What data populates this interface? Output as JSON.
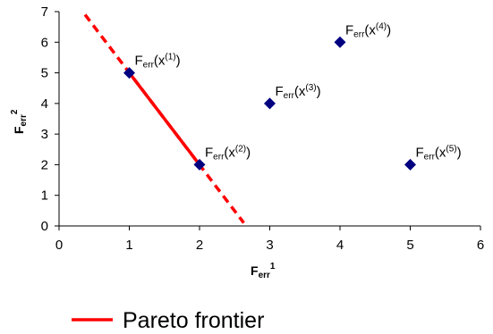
{
  "chart_data": {
    "type": "scatter",
    "xlabel": {
      "base": "F",
      "sub": "err",
      "sup": "1"
    },
    "ylabel": {
      "base": "F",
      "sub": "err",
      "sup": "2"
    },
    "xlim": [
      0,
      6
    ],
    "ylim": [
      0,
      7
    ],
    "xticks": [
      "0",
      "1",
      "2",
      "3",
      "4",
      "5",
      "6"
    ],
    "yticks": [
      "0",
      "1",
      "2",
      "3",
      "4",
      "5",
      "6",
      "7"
    ],
    "grid": false,
    "points": [
      {
        "x": 1,
        "y": 5,
        "label": {
          "base": "F",
          "sub": "err",
          "mid": "(x",
          "sup": "(1)",
          "end": ")"
        }
      },
      {
        "x": 2,
        "y": 2,
        "label": {
          "base": "F",
          "sub": "err",
          "mid": "(x",
          "sup": "(2)",
          "end": ")"
        }
      },
      {
        "x": 3,
        "y": 4,
        "label": {
          "base": "F",
          "sub": "err",
          "mid": "(x",
          "sup": "(3)",
          "end": ")"
        }
      },
      {
        "x": 4,
        "y": 6,
        "label": {
          "base": "F",
          "sub": "err",
          "mid": "(x",
          "sup": "(4)",
          "end": ")"
        }
      },
      {
        "x": 5,
        "y": 2,
        "label": {
          "base": "F",
          "sub": "err",
          "mid": "(x",
          "sup": "(5)",
          "end": ")"
        }
      }
    ],
    "frontier_solid": [
      [
        1,
        5
      ],
      [
        2,
        2
      ]
    ],
    "frontier_dashed": [
      [
        0.37,
        6.9
      ],
      [
        2.63,
        0.1
      ]
    ],
    "marker_color": "#000080",
    "frontier_color": "#ff0000",
    "legend": {
      "label": "Pareto frontier",
      "position": "bottom-left"
    }
  }
}
